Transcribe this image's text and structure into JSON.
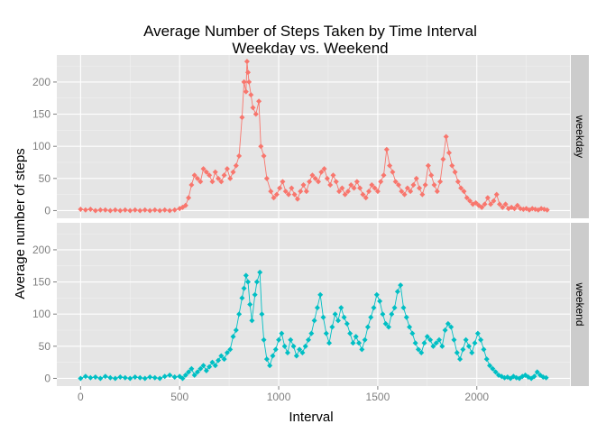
{
  "chart_data": {
    "type": "line",
    "title_line1": "Average Number of Steps Taken by Time Interval",
    "title_line2": "Weekday vs. Weekend",
    "xlabel": "Interval",
    "ylabel": "Average number of steps",
    "xlim": [
      -120,
      2470
    ],
    "ylim": [
      -12,
      242
    ],
    "x_ticks": [
      0,
      500,
      1000,
      1500,
      2000
    ],
    "y_ticks": [
      0,
      50,
      100,
      150,
      200
    ],
    "grid": true,
    "panels": [
      {
        "name": "weekday",
        "color": "#F8766D",
        "points": [
          [
            0,
            2
          ],
          [
            25,
            1
          ],
          [
            50,
            2
          ],
          [
            75,
            0
          ],
          [
            100,
            1
          ],
          [
            125,
            1
          ],
          [
            150,
            0
          ],
          [
            175,
            1
          ],
          [
            200,
            0
          ],
          [
            225,
            1
          ],
          [
            250,
            0
          ],
          [
            275,
            1
          ],
          [
            300,
            0
          ],
          [
            325,
            1
          ],
          [
            350,
            0
          ],
          [
            375,
            1
          ],
          [
            400,
            0
          ],
          [
            425,
            1
          ],
          [
            450,
            0
          ],
          [
            475,
            1
          ],
          [
            500,
            3
          ],
          [
            515,
            5
          ],
          [
            530,
            8
          ],
          [
            545,
            20
          ],
          [
            560,
            40
          ],
          [
            575,
            55
          ],
          [
            590,
            50
          ],
          [
            605,
            45
          ],
          [
            620,
            65
          ],
          [
            635,
            60
          ],
          [
            650,
            55
          ],
          [
            665,
            45
          ],
          [
            680,
            60
          ],
          [
            695,
            50
          ],
          [
            710,
            45
          ],
          [
            725,
            55
          ],
          [
            740,
            65
          ],
          [
            755,
            50
          ],
          [
            770,
            60
          ],
          [
            785,
            70
          ],
          [
            800,
            85
          ],
          [
            815,
            145
          ],
          [
            825,
            200
          ],
          [
            835,
            185
          ],
          [
            840,
            232
          ],
          [
            845,
            215
          ],
          [
            850,
            200
          ],
          [
            860,
            180
          ],
          [
            870,
            160
          ],
          [
            885,
            150
          ],
          [
            900,
            170
          ],
          [
            910,
            100
          ],
          [
            925,
            85
          ],
          [
            940,
            50
          ],
          [
            960,
            30
          ],
          [
            975,
            20
          ],
          [
            990,
            25
          ],
          [
            1005,
            35
          ],
          [
            1020,
            45
          ],
          [
            1035,
            30
          ],
          [
            1050,
            25
          ],
          [
            1065,
            35
          ],
          [
            1080,
            25
          ],
          [
            1095,
            18
          ],
          [
            1110,
            30
          ],
          [
            1125,
            40
          ],
          [
            1140,
            30
          ],
          [
            1155,
            45
          ],
          [
            1170,
            55
          ],
          [
            1185,
            50
          ],
          [
            1200,
            45
          ],
          [
            1215,
            60
          ],
          [
            1230,
            65
          ],
          [
            1245,
            50
          ],
          [
            1260,
            40
          ],
          [
            1275,
            55
          ],
          [
            1290,
            45
          ],
          [
            1305,
            30
          ],
          [
            1320,
            35
          ],
          [
            1335,
            25
          ],
          [
            1350,
            30
          ],
          [
            1365,
            40
          ],
          [
            1380,
            35
          ],
          [
            1395,
            45
          ],
          [
            1410,
            35
          ],
          [
            1425,
            25
          ],
          [
            1440,
            20
          ],
          [
            1455,
            30
          ],
          [
            1470,
            40
          ],
          [
            1485,
            35
          ],
          [
            1500,
            30
          ],
          [
            1515,
            45
          ],
          [
            1530,
            55
          ],
          [
            1545,
            95
          ],
          [
            1560,
            70
          ],
          [
            1575,
            60
          ],
          [
            1590,
            45
          ],
          [
            1605,
            40
          ],
          [
            1620,
            30
          ],
          [
            1635,
            25
          ],
          [
            1650,
            35
          ],
          [
            1665,
            30
          ],
          [
            1680,
            40
          ],
          [
            1695,
            50
          ],
          [
            1710,
            35
          ],
          [
            1725,
            25
          ],
          [
            1740,
            40
          ],
          [
            1755,
            70
          ],
          [
            1770,
            55
          ],
          [
            1785,
            40
          ],
          [
            1800,
            30
          ],
          [
            1815,
            45
          ],
          [
            1830,
            80
          ],
          [
            1845,
            115
          ],
          [
            1860,
            90
          ],
          [
            1875,
            70
          ],
          [
            1890,
            60
          ],
          [
            1905,
            45
          ],
          [
            1920,
            35
          ],
          [
            1935,
            30
          ],
          [
            1950,
            20
          ],
          [
            1965,
            15
          ],
          [
            1980,
            10
          ],
          [
            1995,
            12
          ],
          [
            2010,
            8
          ],
          [
            2025,
            5
          ],
          [
            2040,
            10
          ],
          [
            2055,
            20
          ],
          [
            2070,
            10
          ],
          [
            2085,
            15
          ],
          [
            2100,
            25
          ],
          [
            2115,
            10
          ],
          [
            2130,
            5
          ],
          [
            2145,
            10
          ],
          [
            2160,
            3
          ],
          [
            2175,
            5
          ],
          [
            2190,
            3
          ],
          [
            2205,
            8
          ],
          [
            2220,
            3
          ],
          [
            2235,
            2
          ],
          [
            2250,
            3
          ],
          [
            2265,
            1
          ],
          [
            2280,
            3
          ],
          [
            2295,
            2
          ],
          [
            2310,
            1
          ],
          [
            2325,
            3
          ],
          [
            2340,
            2
          ],
          [
            2355,
            1
          ]
        ]
      },
      {
        "name": "weekend",
        "color": "#00BFC4",
        "points": [
          [
            0,
            0
          ],
          [
            25,
            3
          ],
          [
            50,
            1
          ],
          [
            75,
            2
          ],
          [
            100,
            0
          ],
          [
            125,
            3
          ],
          [
            150,
            1
          ],
          [
            175,
            0
          ],
          [
            200,
            2
          ],
          [
            225,
            1
          ],
          [
            250,
            0
          ],
          [
            275,
            2
          ],
          [
            300,
            1
          ],
          [
            325,
            0
          ],
          [
            350,
            2
          ],
          [
            375,
            1
          ],
          [
            400,
            0
          ],
          [
            425,
            3
          ],
          [
            450,
            5
          ],
          [
            475,
            2
          ],
          [
            500,
            3
          ],
          [
            515,
            0
          ],
          [
            530,
            5
          ],
          [
            545,
            10
          ],
          [
            560,
            15
          ],
          [
            575,
            5
          ],
          [
            590,
            10
          ],
          [
            605,
            15
          ],
          [
            620,
            20
          ],
          [
            635,
            12
          ],
          [
            650,
            18
          ],
          [
            665,
            25
          ],
          [
            680,
            20
          ],
          [
            695,
            28
          ],
          [
            710,
            35
          ],
          [
            725,
            30
          ],
          [
            740,
            40
          ],
          [
            755,
            45
          ],
          [
            770,
            65
          ],
          [
            785,
            75
          ],
          [
            800,
            100
          ],
          [
            815,
            125
          ],
          [
            825,
            140
          ],
          [
            835,
            160
          ],
          [
            845,
            150
          ],
          [
            855,
            115
          ],
          [
            865,
            90
          ],
          [
            880,
            130
          ],
          [
            890,
            150
          ],
          [
            905,
            165
          ],
          [
            915,
            100
          ],
          [
            925,
            60
          ],
          [
            940,
            30
          ],
          [
            955,
            20
          ],
          [
            970,
            35
          ],
          [
            985,
            45
          ],
          [
            1000,
            60
          ],
          [
            1015,
            70
          ],
          [
            1030,
            50
          ],
          [
            1045,
            40
          ],
          [
            1060,
            60
          ],
          [
            1075,
            50
          ],
          [
            1090,
            35
          ],
          [
            1105,
            45
          ],
          [
            1120,
            40
          ],
          [
            1135,
            50
          ],
          [
            1150,
            60
          ],
          [
            1165,
            70
          ],
          [
            1180,
            90
          ],
          [
            1195,
            110
          ],
          [
            1210,
            130
          ],
          [
            1225,
            95
          ],
          [
            1240,
            70
          ],
          [
            1255,
            55
          ],
          [
            1270,
            80
          ],
          [
            1285,
            100
          ],
          [
            1300,
            90
          ],
          [
            1315,
            110
          ],
          [
            1330,
            95
          ],
          [
            1345,
            85
          ],
          [
            1360,
            70
          ],
          [
            1375,
            55
          ],
          [
            1390,
            65
          ],
          [
            1405,
            55
          ],
          [
            1420,
            45
          ],
          [
            1435,
            60
          ],
          [
            1450,
            80
          ],
          [
            1465,
            95
          ],
          [
            1480,
            110
          ],
          [
            1495,
            130
          ],
          [
            1510,
            120
          ],
          [
            1525,
            100
          ],
          [
            1540,
            85
          ],
          [
            1555,
            80
          ],
          [
            1570,
            100
          ],
          [
            1585,
            110
          ],
          [
            1600,
            135
          ],
          [
            1615,
            145
          ],
          [
            1630,
            110
          ],
          [
            1645,
            95
          ],
          [
            1660,
            80
          ],
          [
            1675,
            70
          ],
          [
            1690,
            55
          ],
          [
            1705,
            45
          ],
          [
            1720,
            40
          ],
          [
            1735,
            55
          ],
          [
            1750,
            65
          ],
          [
            1765,
            60
          ],
          [
            1780,
            50
          ],
          [
            1795,
            55
          ],
          [
            1810,
            60
          ],
          [
            1825,
            50
          ],
          [
            1840,
            75
          ],
          [
            1855,
            85
          ],
          [
            1870,
            80
          ],
          [
            1885,
            60
          ],
          [
            1900,
            40
          ],
          [
            1915,
            30
          ],
          [
            1930,
            45
          ],
          [
            1945,
            60
          ],
          [
            1960,
            50
          ],
          [
            1975,
            40
          ],
          [
            1990,
            55
          ],
          [
            2005,
            70
          ],
          [
            2020,
            60
          ],
          [
            2035,
            45
          ],
          [
            2050,
            30
          ],
          [
            2065,
            20
          ],
          [
            2080,
            15
          ],
          [
            2095,
            10
          ],
          [
            2110,
            5
          ],
          [
            2125,
            3
          ],
          [
            2140,
            1
          ],
          [
            2155,
            2
          ],
          [
            2170,
            0
          ],
          [
            2185,
            3
          ],
          [
            2200,
            1
          ],
          [
            2215,
            0
          ],
          [
            2230,
            3
          ],
          [
            2245,
            5
          ],
          [
            2260,
            2
          ],
          [
            2275,
            0
          ],
          [
            2290,
            3
          ],
          [
            2305,
            10
          ],
          [
            2320,
            5
          ],
          [
            2335,
            2
          ],
          [
            2350,
            1
          ]
        ]
      }
    ]
  }
}
